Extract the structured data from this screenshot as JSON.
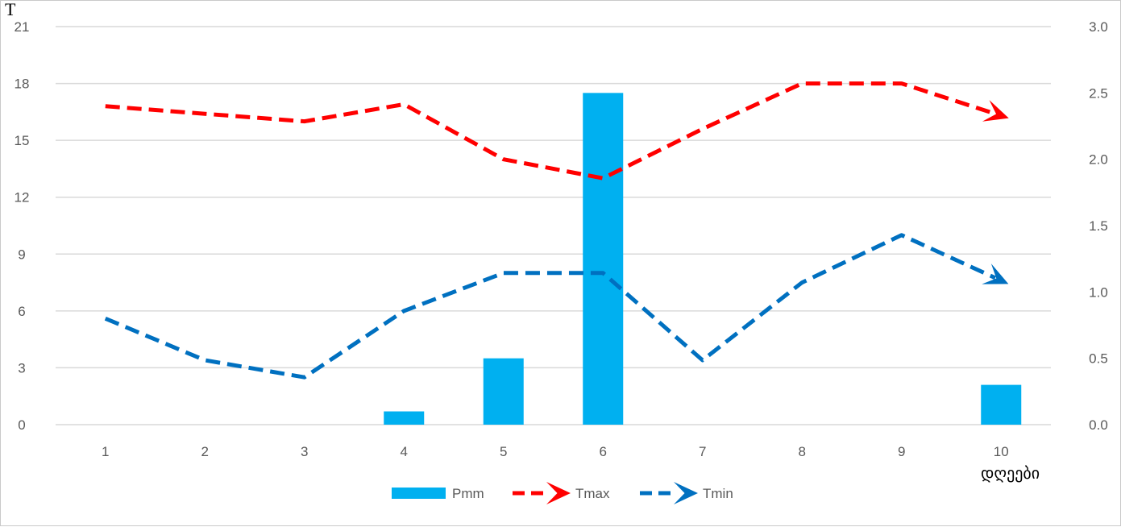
{
  "chart_data": {
    "type": "bar+line",
    "ylabel_left": "T",
    "xlabel": "დღეები",
    "categories": [
      "1",
      "2",
      "3",
      "4",
      "5",
      "6",
      "7",
      "8",
      "9",
      "10"
    ],
    "y_left": {
      "ticks": [
        "0",
        "3",
        "6",
        "9",
        "12",
        "15",
        "18",
        "21"
      ],
      "ylim": [
        0,
        21
      ]
    },
    "y_right": {
      "ticks": [
        "0.0",
        "0.5",
        "1.0",
        "1.5",
        "2.0",
        "2.5",
        "3.0"
      ],
      "ylim": [
        0,
        3
      ]
    },
    "grid": true,
    "legend_position": "bottom",
    "series": [
      {
        "name": "Pmm",
        "kind": "bar",
        "axis": "right",
        "color": "#00B0F0",
        "values": [
          0,
          0,
          0,
          0.1,
          0.5,
          2.5,
          0,
          0,
          0,
          0.3
        ]
      },
      {
        "name": "Tmax",
        "kind": "line",
        "axis": "left",
        "color": "#FF0000",
        "style": "dashed-arrow",
        "values": [
          16.8,
          16.4,
          16.0,
          16.9,
          14.0,
          13.0,
          15.6,
          18.0,
          18.0,
          16.3
        ]
      },
      {
        "name": "Tmin",
        "kind": "line",
        "axis": "left",
        "color": "#0070C0",
        "style": "dashed-arrow",
        "values": [
          5.6,
          3.4,
          2.5,
          6.0,
          8.0,
          8.0,
          3.4,
          7.5,
          10.0,
          7.6
        ]
      }
    ]
  }
}
